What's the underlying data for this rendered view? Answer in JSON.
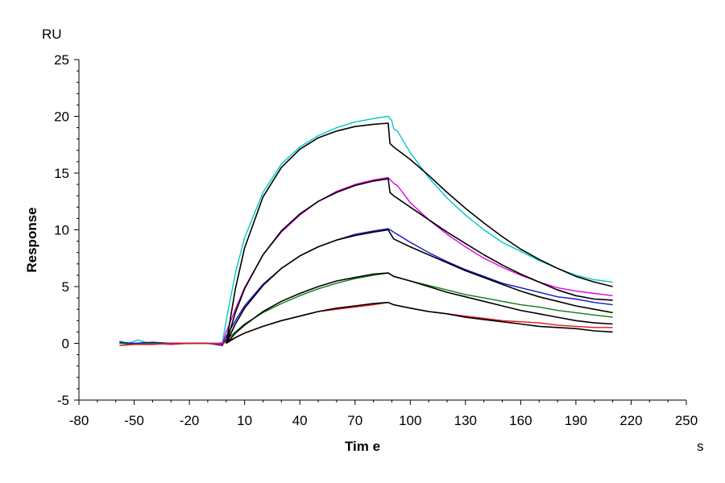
{
  "chart_data": {
    "type": "line",
    "title": "",
    "xlabel": "Tim e",
    "ylabel": "Response",
    "x_unit": "s",
    "y_unit": "RU",
    "xlim": [
      -80,
      250
    ],
    "ylim": [
      -5,
      25
    ],
    "x_ticks": [
      -80,
      -50,
      -20,
      10,
      40,
      70,
      100,
      130,
      160,
      190,
      220,
      250
    ],
    "y_ticks": [
      -5,
      0,
      5,
      10,
      15,
      20,
      25
    ],
    "grid": false,
    "legend": "none",
    "series": [
      {
        "color": "#00c8c8",
        "kind": "measured",
        "points": [
          [
            -58,
            0.2
          ],
          [
            -53,
            0.0
          ],
          [
            -48,
            0.3
          ],
          [
            -44,
            0.1
          ],
          [
            -40,
            0.0
          ],
          [
            -30,
            0.0
          ],
          [
            -20,
            0.0
          ],
          [
            -10,
            0.0
          ],
          [
            -4,
            0.0
          ],
          [
            -2,
            0.1
          ],
          [
            0,
            2.0
          ],
          [
            5,
            6.2
          ],
          [
            10,
            9.3
          ],
          [
            20,
            13.3
          ],
          [
            30,
            15.8
          ],
          [
            40,
            17.3
          ],
          [
            50,
            18.3
          ],
          [
            60,
            19.0
          ],
          [
            70,
            19.5
          ],
          [
            80,
            19.8
          ],
          [
            88,
            20.0
          ],
          [
            90,
            19.6
          ],
          [
            91,
            18.9
          ],
          [
            93,
            18.7
          ],
          [
            100,
            16.8
          ],
          [
            110,
            14.6
          ],
          [
            120,
            12.8
          ],
          [
            130,
            11.3
          ],
          [
            140,
            10.0
          ],
          [
            150,
            8.9
          ],
          [
            160,
            8.1
          ],
          [
            170,
            7.3
          ],
          [
            180,
            6.6
          ],
          [
            190,
            6.0
          ],
          [
            200,
            5.6
          ],
          [
            210,
            5.4
          ]
        ]
      },
      {
        "color": "#000000",
        "kind": "fit",
        "points": [
          [
            0,
            0.0
          ],
          [
            5,
            4.8
          ],
          [
            10,
            8.4
          ],
          [
            20,
            12.9
          ],
          [
            30,
            15.5
          ],
          [
            40,
            17.1
          ],
          [
            50,
            18.1
          ],
          [
            60,
            18.7
          ],
          [
            70,
            19.1
          ],
          [
            80,
            19.3
          ],
          [
            88,
            19.4
          ],
          [
            89,
            17.6
          ],
          [
            91,
            17.3
          ],
          [
            100,
            16.2
          ],
          [
            110,
            14.8
          ],
          [
            120,
            13.3
          ],
          [
            130,
            11.9
          ],
          [
            140,
            10.6
          ],
          [
            150,
            9.4
          ],
          [
            160,
            8.3
          ],
          [
            170,
            7.4
          ],
          [
            180,
            6.6
          ],
          [
            190,
            5.9
          ],
          [
            200,
            5.4
          ],
          [
            210,
            5.0
          ]
        ]
      },
      {
        "color": "#e000e0",
        "kind": "measured",
        "points": [
          [
            -58,
            0.1
          ],
          [
            -50,
            -0.1
          ],
          [
            -40,
            0.0
          ],
          [
            -30,
            -0.1
          ],
          [
            -20,
            0.0
          ],
          [
            -10,
            0.0
          ],
          [
            -2,
            0.0
          ],
          [
            0,
            1.0
          ],
          [
            5,
            3.0
          ],
          [
            10,
            4.9
          ],
          [
            20,
            7.8
          ],
          [
            30,
            9.8
          ],
          [
            40,
            11.3
          ],
          [
            50,
            12.5
          ],
          [
            60,
            13.4
          ],
          [
            70,
            14.0
          ],
          [
            80,
            14.4
          ],
          [
            88,
            14.6
          ],
          [
            91,
            14.1
          ],
          [
            93,
            13.9
          ],
          [
            100,
            12.4
          ],
          [
            110,
            10.9
          ],
          [
            120,
            9.6
          ],
          [
            130,
            8.5
          ],
          [
            140,
            7.5
          ],
          [
            150,
            6.7
          ],
          [
            160,
            6.0
          ],
          [
            170,
            5.4
          ],
          [
            180,
            4.9
          ],
          [
            190,
            4.6
          ],
          [
            200,
            4.4
          ],
          [
            210,
            4.2
          ]
        ]
      },
      {
        "color": "#000000",
        "kind": "fit",
        "points": [
          [
            0,
            0.0
          ],
          [
            5,
            2.7
          ],
          [
            10,
            4.8
          ],
          [
            20,
            7.8
          ],
          [
            30,
            9.9
          ],
          [
            40,
            11.4
          ],
          [
            50,
            12.5
          ],
          [
            60,
            13.3
          ],
          [
            70,
            13.9
          ],
          [
            80,
            14.3
          ],
          [
            88,
            14.5
          ],
          [
            89,
            13.3
          ],
          [
            91,
            13.0
          ],
          [
            100,
            12.0
          ],
          [
            110,
            10.9
          ],
          [
            120,
            9.8
          ],
          [
            130,
            8.8
          ],
          [
            140,
            7.8
          ],
          [
            150,
            6.9
          ],
          [
            160,
            6.1
          ],
          [
            170,
            5.4
          ],
          [
            180,
            4.7
          ],
          [
            190,
            4.2
          ],
          [
            200,
            3.9
          ],
          [
            210,
            3.8
          ]
        ]
      },
      {
        "color": "#1414c8",
        "kind": "measured",
        "points": [
          [
            -58,
            0.1
          ],
          [
            -50,
            0.0
          ],
          [
            -40,
            0.1
          ],
          [
            -30,
            0.0
          ],
          [
            -20,
            0.0
          ],
          [
            -10,
            0.0
          ],
          [
            -2,
            -0.2
          ],
          [
            0,
            0.6
          ],
          [
            5,
            2.0
          ],
          [
            10,
            3.3
          ],
          [
            20,
            5.2
          ],
          [
            30,
            6.6
          ],
          [
            40,
            7.7
          ],
          [
            50,
            8.5
          ],
          [
            60,
            9.1
          ],
          [
            70,
            9.6
          ],
          [
            80,
            9.9
          ],
          [
            88,
            10.1
          ],
          [
            91,
            9.8
          ],
          [
            93,
            9.6
          ],
          [
            100,
            8.9
          ],
          [
            110,
            8.0
          ],
          [
            120,
            7.2
          ],
          [
            130,
            6.5
          ],
          [
            140,
            5.9
          ],
          [
            150,
            5.3
          ],
          [
            160,
            4.9
          ],
          [
            170,
            4.5
          ],
          [
            180,
            4.1
          ],
          [
            190,
            3.9
          ],
          [
            200,
            3.6
          ],
          [
            210,
            3.4
          ]
        ]
      },
      {
        "color": "#000000",
        "kind": "fit",
        "points": [
          [
            0,
            0.0
          ],
          [
            5,
            1.7
          ],
          [
            10,
            3.1
          ],
          [
            20,
            5.1
          ],
          [
            30,
            6.6
          ],
          [
            40,
            7.7
          ],
          [
            50,
            8.5
          ],
          [
            60,
            9.1
          ],
          [
            70,
            9.5
          ],
          [
            80,
            9.8
          ],
          [
            88,
            10.0
          ],
          [
            91,
            9.2
          ],
          [
            100,
            8.5
          ],
          [
            110,
            7.8
          ],
          [
            120,
            7.1
          ],
          [
            130,
            6.4
          ],
          [
            140,
            5.8
          ],
          [
            150,
            5.2
          ],
          [
            160,
            4.6
          ],
          [
            170,
            4.1
          ],
          [
            180,
            3.7
          ],
          [
            190,
            3.3
          ],
          [
            200,
            3.0
          ],
          [
            210,
            2.7
          ]
        ]
      },
      {
        "color": "#147814",
        "kind": "measured",
        "points": [
          [
            -58,
            0.0
          ],
          [
            -50,
            -0.1
          ],
          [
            -40,
            0.0
          ],
          [
            -30,
            0.0
          ],
          [
            -20,
            0.0
          ],
          [
            -10,
            0.0
          ],
          [
            -2,
            -0.1
          ],
          [
            0,
            0.3
          ],
          [
            5,
            1.0
          ],
          [
            10,
            1.7
          ],
          [
            20,
            2.7
          ],
          [
            30,
            3.5
          ],
          [
            40,
            4.2
          ],
          [
            50,
            4.8
          ],
          [
            60,
            5.3
          ],
          [
            70,
            5.7
          ],
          [
            80,
            6.0
          ],
          [
            88,
            6.2
          ],
          [
            91,
            5.9
          ],
          [
            100,
            5.5
          ],
          [
            110,
            5.1
          ],
          [
            120,
            4.7
          ],
          [
            130,
            4.3
          ],
          [
            140,
            4.0
          ],
          [
            150,
            3.7
          ],
          [
            160,
            3.4
          ],
          [
            170,
            3.2
          ],
          [
            180,
            2.9
          ],
          [
            190,
            2.7
          ],
          [
            200,
            2.5
          ],
          [
            210,
            2.3
          ]
        ]
      },
      {
        "color": "#000000",
        "kind": "fit",
        "points": [
          [
            0,
            0.0
          ],
          [
            5,
            0.9
          ],
          [
            10,
            1.6
          ],
          [
            20,
            2.8
          ],
          [
            30,
            3.7
          ],
          [
            40,
            4.4
          ],
          [
            50,
            5.0
          ],
          [
            60,
            5.5
          ],
          [
            70,
            5.8
          ],
          [
            80,
            6.1
          ],
          [
            88,
            6.2
          ],
          [
            91,
            5.9
          ],
          [
            100,
            5.5
          ],
          [
            110,
            5.0
          ],
          [
            120,
            4.5
          ],
          [
            130,
            4.1
          ],
          [
            140,
            3.7
          ],
          [
            150,
            3.3
          ],
          [
            160,
            2.9
          ],
          [
            170,
            2.6
          ],
          [
            180,
            2.3
          ],
          [
            190,
            2.0
          ],
          [
            200,
            1.8
          ],
          [
            210,
            1.7
          ]
        ]
      },
      {
        "color": "#e01414",
        "kind": "measured",
        "points": [
          [
            -58,
            -0.2
          ],
          [
            -50,
            -0.1
          ],
          [
            -40,
            -0.1
          ],
          [
            -30,
            0.0
          ],
          [
            -20,
            0.0
          ],
          [
            -10,
            0.0
          ],
          [
            -2,
            -0.1
          ],
          [
            0,
            0.2
          ],
          [
            5,
            0.5
          ],
          [
            10,
            0.9
          ],
          [
            20,
            1.5
          ],
          [
            30,
            2.0
          ],
          [
            40,
            2.4
          ],
          [
            50,
            2.8
          ],
          [
            60,
            3.0
          ],
          [
            70,
            3.2
          ],
          [
            80,
            3.4
          ],
          [
            88,
            3.6
          ],
          [
            91,
            3.4
          ],
          [
            100,
            3.1
          ],
          [
            110,
            2.8
          ],
          [
            120,
            2.6
          ],
          [
            130,
            2.4
          ],
          [
            140,
            2.2
          ],
          [
            150,
            2.0
          ],
          [
            160,
            1.9
          ],
          [
            170,
            1.8
          ],
          [
            180,
            1.6
          ],
          [
            190,
            1.5
          ],
          [
            200,
            1.4
          ],
          [
            210,
            1.4
          ]
        ]
      },
      {
        "color": "#000000",
        "kind": "fit",
        "points": [
          [
            0,
            0.0
          ],
          [
            5,
            0.5
          ],
          [
            10,
            0.9
          ],
          [
            20,
            1.5
          ],
          [
            30,
            2.0
          ],
          [
            40,
            2.4
          ],
          [
            50,
            2.8
          ],
          [
            60,
            3.1
          ],
          [
            70,
            3.3
          ],
          [
            80,
            3.5
          ],
          [
            88,
            3.6
          ],
          [
            91,
            3.4
          ],
          [
            100,
            3.1
          ],
          [
            110,
            2.8
          ],
          [
            120,
            2.6
          ],
          [
            130,
            2.3
          ],
          [
            140,
            2.1
          ],
          [
            150,
            1.9
          ],
          [
            160,
            1.7
          ],
          [
            170,
            1.5
          ],
          [
            180,
            1.4
          ],
          [
            190,
            1.3
          ],
          [
            200,
            1.1
          ],
          [
            210,
            1.0
          ]
        ]
      }
    ]
  }
}
